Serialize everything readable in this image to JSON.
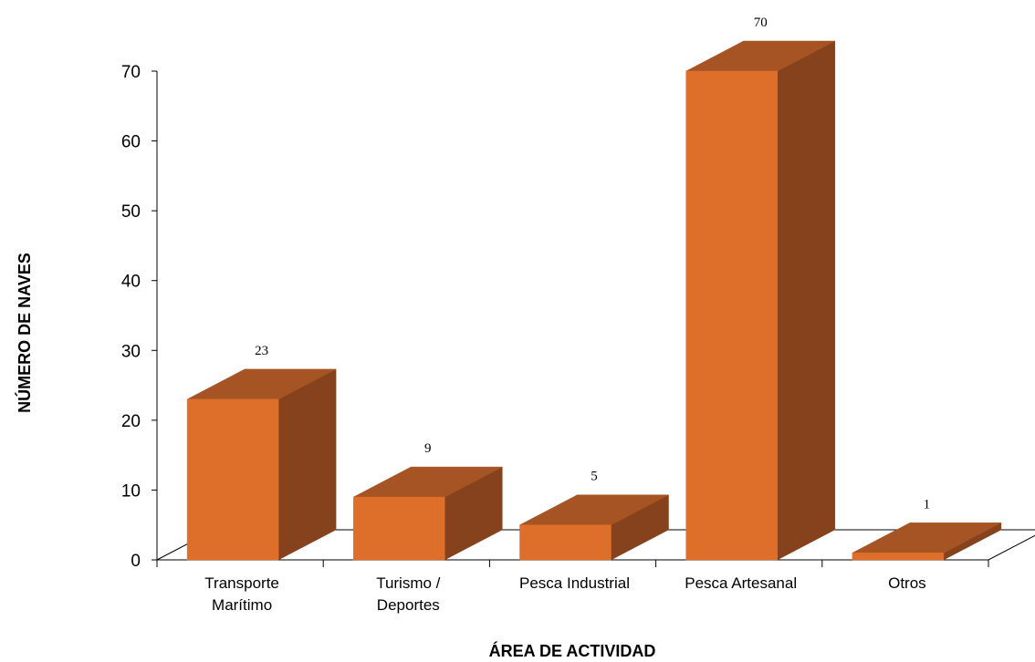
{
  "chart_data": {
    "type": "bar",
    "categories": [
      [
        "Transporte",
        "Marítimo"
      ],
      [
        "Turismo /",
        "Deportes"
      ],
      [
        "Pesca Industrial"
      ],
      [
        "Pesca Artesanal"
      ],
      [
        "Otros"
      ]
    ],
    "values": [
      23,
      9,
      5,
      70,
      1
    ],
    "data_labels": [
      "23",
      "9",
      "5",
      "70",
      "1"
    ],
    "xlabel": "ÁREA DE ACTIVIDAD",
    "ylabel": "NÚMERO DE NAVES",
    "ylim": [
      0,
      70
    ],
    "yticks": [
      "0",
      "10",
      "20",
      "30",
      "40",
      "50",
      "60",
      "70"
    ],
    "grid": false,
    "legend": "none",
    "style": "3d-bar",
    "colors": {
      "front": "#de6f2a",
      "top": "#a65424",
      "side": "#86421c"
    }
  }
}
